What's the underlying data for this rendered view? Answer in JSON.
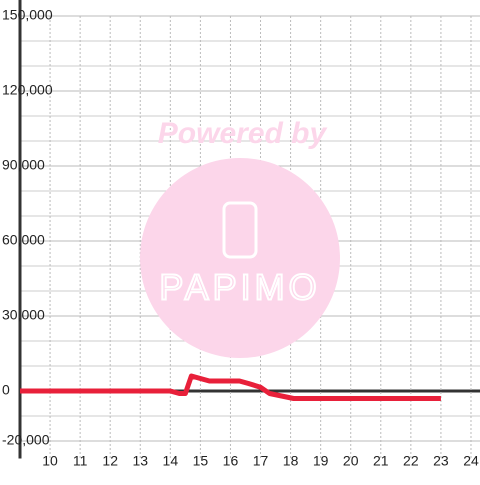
{
  "chart_data": {
    "type": "line",
    "annotations": [
      "Powered by",
      "PAPIMO"
    ],
    "x": [
      9,
      14,
      14.3,
      14.5,
      14.7,
      15,
      15.3,
      16.3,
      16.6,
      17,
      17.3,
      17.7,
      18.1,
      23
    ],
    "series": [
      {
        "color": "#e8203a",
        "values": [
          0,
          0,
          -1000,
          -1000,
          6000,
          5000,
          4000,
          4000,
          3000,
          1500,
          -1000,
          -2000,
          -3000,
          -3000
        ]
      }
    ],
    "xlim": [
      9,
      24.3
    ],
    "ylim": [
      -27000,
      150000
    ],
    "xticks": [
      10,
      11,
      12,
      13,
      14,
      15,
      16,
      17,
      18,
      19,
      20,
      21,
      22,
      23,
      24
    ],
    "yticks": [
      {
        "value": -20000,
        "label": "-20,000"
      },
      0,
      {
        "value": 30000,
        "label": "30,000"
      },
      {
        "value": 60000,
        "label": "60,000"
      },
      {
        "value": 90000,
        "label": "90,000"
      },
      {
        "value": 120000,
        "label": "120,000"
      },
      {
        "value": 150000,
        "label": "150,000"
      }
    ],
    "minor_yticks": [
      -10000,
      10000,
      20000,
      40000,
      50000,
      70000,
      80000,
      100000,
      110000,
      130000,
      140000
    ],
    "grid": true
  }
}
